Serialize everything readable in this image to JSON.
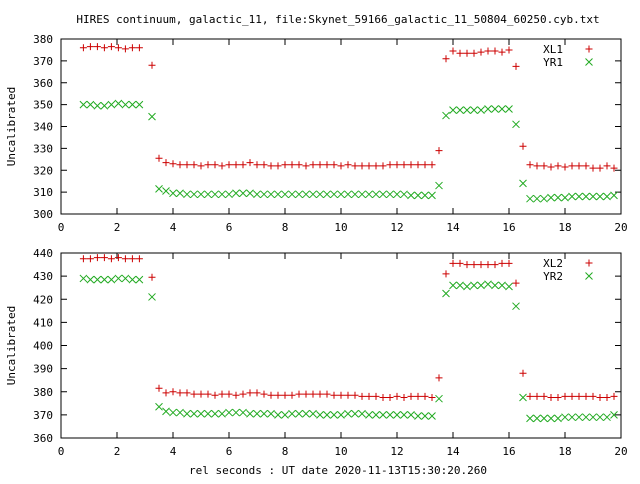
{
  "title": "HIRES continuum, galactic_11, file:Skynet_59166_galactic_11_50804_60250.cyb.txt",
  "xlabel": "rel seconds : UT date 2020-11-13T15:30:20.260",
  "colors": {
    "series_a": "#cc0000",
    "series_b": "#22aa22"
  },
  "chart_data": [
    {
      "type": "scatter",
      "ylabel": "Uncalibrated",
      "xlim": [
        0,
        20
      ],
      "ylim": [
        300,
        380
      ],
      "xticks": [
        0,
        2,
        4,
        6,
        8,
        10,
        12,
        14,
        16,
        18,
        20
      ],
      "yticks": [
        300,
        310,
        320,
        330,
        340,
        350,
        360,
        370,
        380
      ],
      "legend_position": "top-right",
      "marker_a": "+",
      "marker_b": "x",
      "x": [
        0.8,
        1.05,
        1.3,
        1.55,
        1.8,
        2.05,
        2.3,
        2.55,
        2.8,
        3.25,
        3.5,
        3.75,
        4.0,
        4.25,
        4.5,
        4.75,
        5.0,
        5.25,
        5.5,
        5.75,
        6.0,
        6.25,
        6.5,
        6.75,
        7.0,
        7.25,
        7.5,
        7.75,
        8.0,
        8.25,
        8.5,
        8.75,
        9.0,
        9.25,
        9.5,
        9.75,
        10.0,
        10.25,
        10.5,
        10.75,
        11.0,
        11.25,
        11.5,
        11.75,
        12.0,
        12.25,
        12.5,
        12.75,
        13.0,
        13.25,
        13.5,
        13.75,
        14.0,
        14.25,
        14.5,
        14.75,
        15.0,
        15.25,
        15.5,
        15.75,
        16.0,
        16.25,
        16.5,
        16.75,
        17.0,
        17.25,
        17.5,
        17.75,
        18.0,
        18.25,
        18.5,
        18.75,
        19.0,
        19.25,
        19.5,
        19.75
      ],
      "series": [
        {
          "name": "XL1",
          "values": [
            376,
            376.5,
            376.5,
            376,
            376.5,
            376,
            375.5,
            376,
            376,
            368,
            325.5,
            323.5,
            323,
            322.5,
            322.5,
            322.5,
            322,
            322.5,
            322.5,
            322,
            322.5,
            322.5,
            322.5,
            323.5,
            322.5,
            322.5,
            322,
            322,
            322.5,
            322.5,
            322.5,
            322,
            322.5,
            322.5,
            322.5,
            322.5,
            322,
            322.5,
            322,
            322,
            322,
            322,
            322,
            322.5,
            322.5,
            322.5,
            322.5,
            322.5,
            322.5,
            322.5,
            329,
            371,
            374.5,
            373.5,
            373.5,
            373.5,
            374,
            374.5,
            374.5,
            374,
            375,
            367.5,
            331,
            322.5,
            322,
            322,
            321.5,
            322,
            321.5,
            322,
            322,
            322,
            321,
            321,
            322,
            321
          ]
        },
        {
          "name": "YR1",
          "values": [
            350,
            350,
            349.5,
            349.5,
            350,
            350.5,
            350,
            350,
            350,
            344.5,
            311.5,
            310.5,
            309.5,
            309.5,
            309,
            309,
            309,
            309,
            309,
            309,
            309,
            309.5,
            309.5,
            309.5,
            309,
            309,
            309,
            309,
            309,
            309,
            309,
            309,
            309,
            309,
            309,
            309,
            309,
            309,
            309,
            309,
            309,
            309,
            309,
            309,
            309,
            309,
            308.5,
            308.5,
            308.5,
            308.5,
            313,
            345,
            347.5,
            347.5,
            347.5,
            347.5,
            347.5,
            348,
            348,
            348,
            348,
            341,
            314,
            307,
            307,
            307,
            307.5,
            307.5,
            307.5,
            308,
            308,
            308,
            308,
            308,
            308,
            308.5
          ]
        }
      ]
    },
    {
      "type": "scatter",
      "ylabel": "Uncalibrated",
      "xlim": [
        0,
        20
      ],
      "ylim": [
        360,
        440
      ],
      "xticks": [
        0,
        2,
        4,
        6,
        8,
        10,
        12,
        14,
        16,
        18,
        20
      ],
      "yticks": [
        360,
        370,
        380,
        390,
        400,
        410,
        420,
        430,
        440
      ],
      "legend_position": "top-right",
      "marker_a": "+",
      "marker_b": "x",
      "x": [
        0.8,
        1.05,
        1.3,
        1.55,
        1.8,
        2.05,
        2.3,
        2.55,
        2.8,
        3.25,
        3.5,
        3.75,
        4.0,
        4.25,
        4.5,
        4.75,
        5.0,
        5.25,
        5.5,
        5.75,
        6.0,
        6.25,
        6.5,
        6.75,
        7.0,
        7.25,
        7.5,
        7.75,
        8.0,
        8.25,
        8.5,
        8.75,
        9.0,
        9.25,
        9.5,
        9.75,
        10.0,
        10.25,
        10.5,
        10.75,
        11.0,
        11.25,
        11.5,
        11.75,
        12.0,
        12.25,
        12.5,
        12.75,
        13.0,
        13.25,
        13.5,
        13.75,
        14.0,
        14.25,
        14.5,
        14.75,
        15.0,
        15.25,
        15.5,
        15.75,
        16.0,
        16.25,
        16.5,
        16.75,
        17.0,
        17.25,
        17.5,
        17.75,
        18.0,
        18.25,
        18.5,
        18.75,
        19.0,
        19.25,
        19.5,
        19.75
      ],
      "series": [
        {
          "name": "XL2",
          "values": [
            437.5,
            437.5,
            438,
            438,
            437.5,
            438,
            437.5,
            437.5,
            437.5,
            429.5,
            381.5,
            379.5,
            380,
            379.5,
            379.5,
            379,
            379,
            379,
            378.5,
            379,
            379,
            378.5,
            379,
            379.5,
            379.5,
            379,
            378.5,
            378.5,
            378.5,
            378.5,
            379,
            379,
            379,
            379,
            379,
            378.5,
            378.5,
            378.5,
            378.5,
            378,
            378,
            378,
            377.5,
            377.5,
            378,
            377.5,
            378,
            378,
            378,
            377.5,
            386,
            431,
            435.5,
            435.5,
            435,
            435,
            435,
            435,
            435,
            435.5,
            435.5,
            427,
            388,
            378,
            378,
            378,
            377.5,
            377.5,
            378,
            378,
            378,
            378,
            378,
            377.5,
            377.5,
            378
          ]
        },
        {
          "name": "YR2",
          "values": [
            429,
            428.5,
            428.5,
            428.5,
            428.5,
            429,
            429,
            428.5,
            428.5,
            421,
            373.5,
            371.5,
            371,
            371,
            370.5,
            370.5,
            370.5,
            370.5,
            370.5,
            370.5,
            371,
            371,
            371,
            370.5,
            370.5,
            370.5,
            370.5,
            370,
            370,
            370.5,
            370.5,
            370.5,
            370.5,
            370,
            370,
            370,
            370,
            370.5,
            370.5,
            370.5,
            370,
            370,
            370,
            370,
            370,
            370,
            370,
            369.5,
            369.5,
            369.5,
            377,
            422.5,
            426,
            426,
            425.5,
            426,
            426,
            426.5,
            426,
            426,
            425.5,
            417,
            377.5,
            368.5,
            368.5,
            368.5,
            368.5,
            368.5,
            369,
            369,
            369,
            369,
            369,
            369,
            369,
            370
          ]
        }
      ]
    }
  ]
}
